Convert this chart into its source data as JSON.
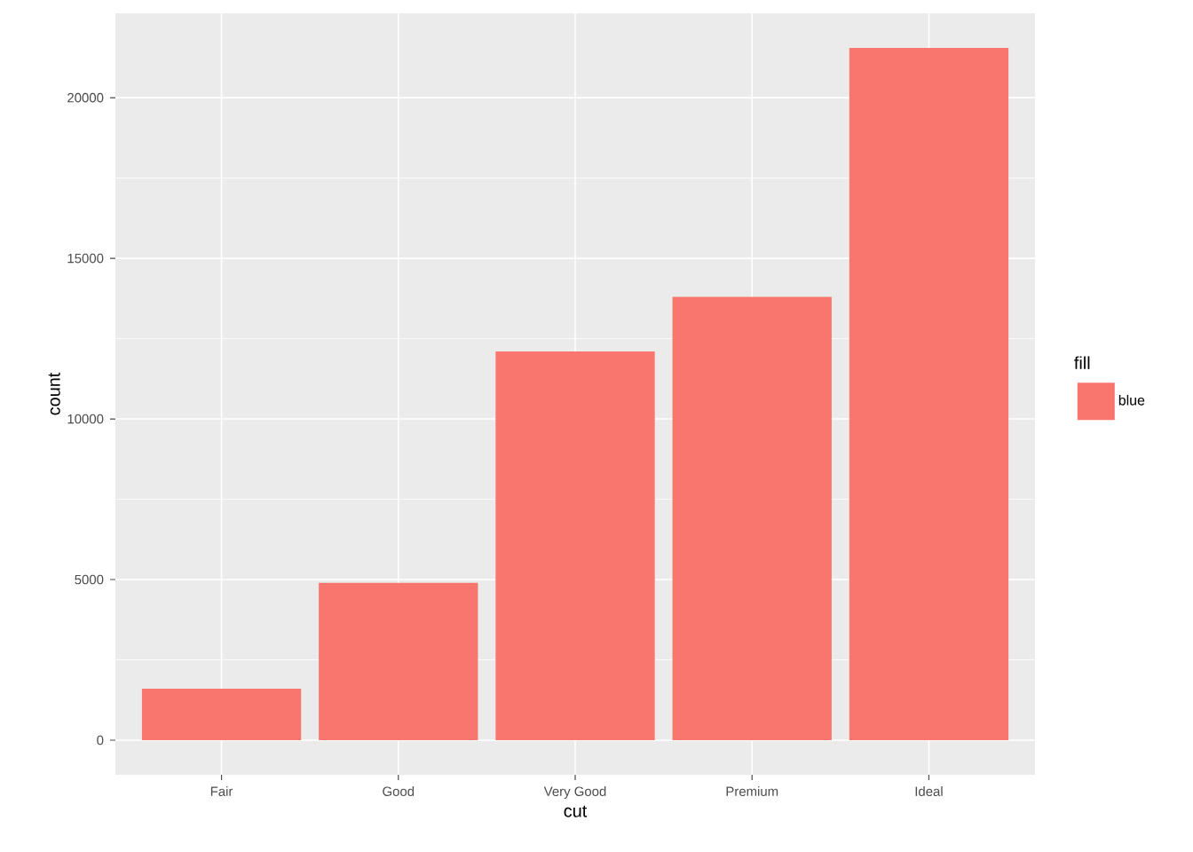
{
  "chart_data": {
    "type": "bar",
    "xlabel": "cut",
    "ylabel": "count",
    "legend_title": "fill",
    "categories": [
      "Fair",
      "Good",
      "Very Good",
      "Premium",
      "Ideal"
    ],
    "series": [
      {
        "name": "blue",
        "color": "#f8766d",
        "values": [
          1600,
          4900,
          12100,
          13800,
          21550
        ]
      }
    ],
    "ylim": [
      -1078,
      22629
    ],
    "yticks": [
      0,
      5000,
      10000,
      15000,
      20000
    ],
    "grid": true,
    "legend": "right"
  }
}
